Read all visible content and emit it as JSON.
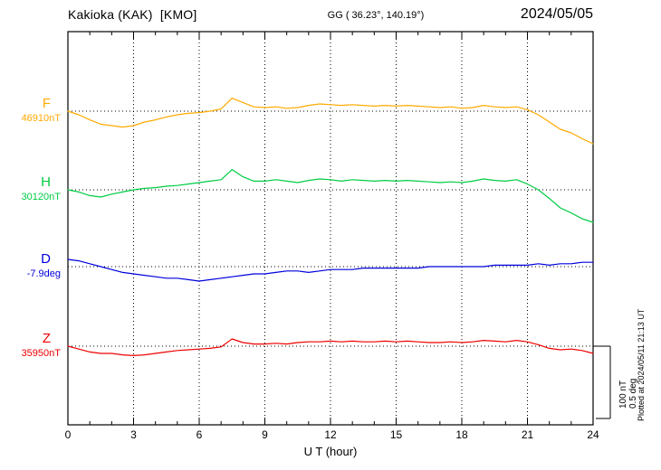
{
  "header": {
    "station": "Kakioka (KAK)  [KMO]",
    "coords": "GG ( 36.23°, 140.19°)",
    "date": "2024/05/05"
  },
  "xaxis": {
    "label": "U T (hour)",
    "tick_hours": [
      0,
      3,
      6,
      9,
      12,
      15,
      18,
      21,
      24
    ]
  },
  "scalebar": {
    "nt_label": "100 nT",
    "deg_label": "0.5 deg",
    "nt_span": 100,
    "deg_span": 0.5
  },
  "plotted_note": "Plotted at 2024/05/11 21:13 UT",
  "chart_data": {
    "type": "line",
    "title": "Kakioka (KAK) [KMO] magnetogram, 2024/05/05",
    "xlabel": "U T (hour)",
    "x_start_hour": 0,
    "x_step_hours": 0.5,
    "x_range_hours": [
      0,
      24
    ],
    "grid": "dotted vertical lines every 3 h; dotted horizontal line at each trace baseline",
    "scale": {
      "nT_per_div": 100,
      "deg_per_div": 0.5
    },
    "series": [
      {
        "name": "F",
        "unit": "nT",
        "baseline_value": 46910,
        "baseline_label": "46910nT",
        "color": "#ffaa00",
        "rel_values": [
          0,
          -5,
          -12,
          -18,
          -20,
          -22,
          -20,
          -15,
          -12,
          -8,
          -5,
          -3,
          -2,
          0,
          3,
          18,
          12,
          6,
          5,
          6,
          4,
          5,
          8,
          10,
          9,
          8,
          9,
          8,
          7,
          8,
          7,
          8,
          7,
          6,
          5,
          6,
          4,
          5,
          8,
          6,
          5,
          6,
          2,
          -5,
          -15,
          -25,
          -30,
          -38,
          -45
        ]
      },
      {
        "name": "H",
        "unit": "nT",
        "baseline_value": 30120,
        "baseline_label": "30120nT",
        "color": "#00cc44",
        "rel_values": [
          0,
          -3,
          -8,
          -10,
          -6,
          -3,
          0,
          2,
          3,
          5,
          6,
          8,
          10,
          12,
          14,
          28,
          18,
          12,
          12,
          14,
          12,
          10,
          13,
          15,
          14,
          12,
          14,
          13,
          12,
          13,
          12,
          13,
          12,
          11,
          10,
          11,
          10,
          12,
          15,
          13,
          12,
          14,
          8,
          0,
          -12,
          -25,
          -32,
          -40,
          -45
        ]
      },
      {
        "name": "D",
        "unit": "deg",
        "baseline_value": -7.9,
        "baseline_label": "-7.9deg",
        "color": "#0000dd",
        "rel_values": [
          0.05,
          0.04,
          0.02,
          0.0,
          -0.02,
          -0.04,
          -0.05,
          -0.06,
          -0.07,
          -0.08,
          -0.08,
          -0.09,
          -0.1,
          -0.09,
          -0.08,
          -0.07,
          -0.06,
          -0.05,
          -0.05,
          -0.04,
          -0.03,
          -0.03,
          -0.04,
          -0.03,
          -0.02,
          -0.02,
          -0.02,
          -0.01,
          -0.01,
          -0.01,
          -0.01,
          -0.01,
          -0.01,
          0.0,
          0.0,
          0.0,
          0.0,
          0.0,
          0.0,
          0.01,
          0.01,
          0.01,
          0.01,
          0.02,
          0.01,
          0.02,
          0.02,
          0.03,
          0.03
        ]
      },
      {
        "name": "Z",
        "unit": "nT",
        "baseline_value": 35950,
        "baseline_label": "35950nT",
        "color": "#ee0000",
        "rel_values": [
          0,
          -4,
          -8,
          -10,
          -10,
          -12,
          -13,
          -12,
          -10,
          -8,
          -6,
          -5,
          -4,
          -3,
          -1,
          10,
          5,
          3,
          3,
          4,
          3,
          5,
          6,
          6,
          7,
          6,
          7,
          6,
          6,
          7,
          6,
          7,
          6,
          5,
          5,
          6,
          5,
          6,
          8,
          7,
          6,
          8,
          6,
          2,
          -3,
          -5,
          -4,
          -6,
          -10
        ]
      }
    ]
  }
}
